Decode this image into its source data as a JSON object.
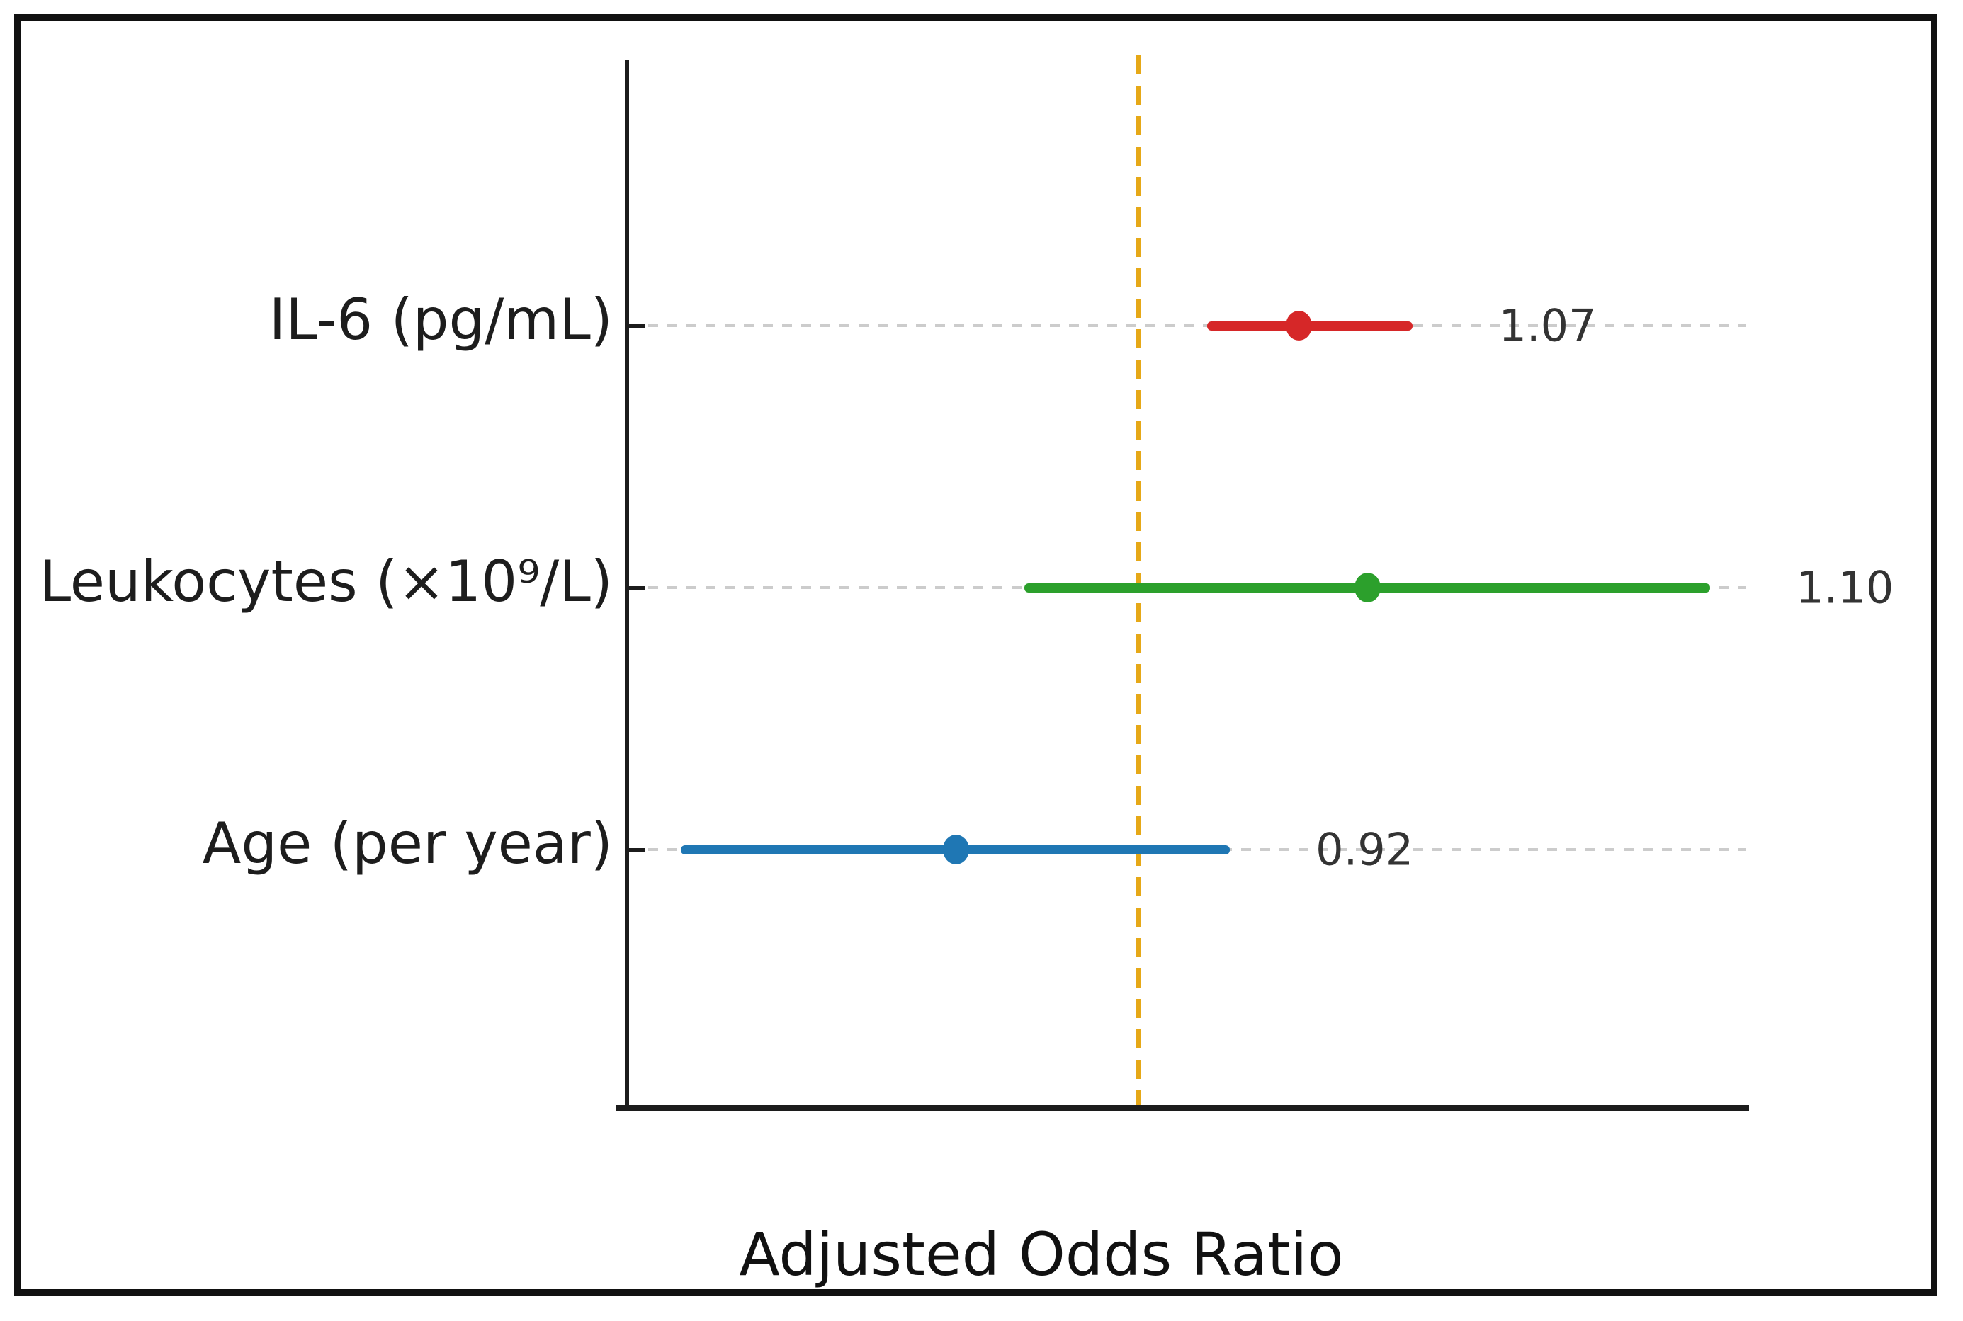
{
  "figure": {
    "xlabel": "Adjusted Odds Ratio"
  },
  "chart_data": {
    "type": "forest",
    "title": "",
    "xlabel": "Adjusted Odds Ratio",
    "ylabel": "",
    "xlim": [
      0.77,
      1.27
    ],
    "grid": {
      "horizontal": true,
      "style": "dashed",
      "color": "#cccccc"
    },
    "reference_line": {
      "value": 1.0,
      "orientation": "vertical",
      "style": "dashed",
      "color": "#e6a817"
    },
    "rows": [
      {
        "label": "IL-6 (pg/mL)",
        "odds_ratio": 1.07,
        "ci_low": 1.03,
        "ci_high": 1.12,
        "annotation": "1.07",
        "color": "#d62728"
      },
      {
        "label": "Leukocytes (×10⁹/L)",
        "odds_ratio": 1.1,
        "ci_low": 0.95,
        "ci_high": 1.25,
        "annotation": "1.10",
        "color": "#2ca02c"
      },
      {
        "label": "Age (per year)",
        "odds_ratio": 0.92,
        "ci_low": 0.8,
        "ci_high": 1.04,
        "annotation": "0.92",
        "color": "#1f77b4"
      }
    ]
  },
  "colors": {
    "background": "#ffffff",
    "frame": "#111111",
    "axis": "#1c1c1c",
    "grid": "#cccccc",
    "reference": "#e6a817",
    "annotation_text": "#333333",
    "label_text": "#1d1d1d"
  }
}
